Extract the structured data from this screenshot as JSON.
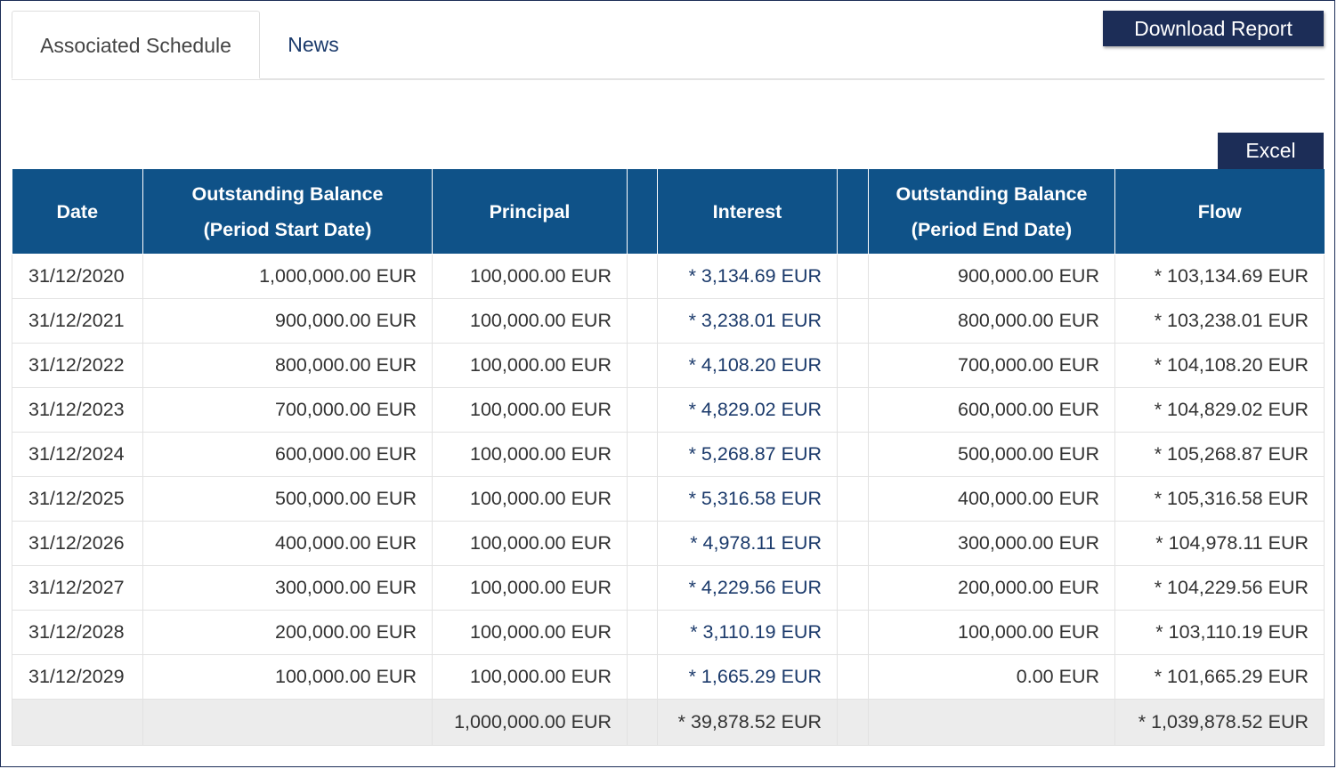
{
  "tabs": [
    {
      "label": "Associated Schedule",
      "active": true
    },
    {
      "label": "News",
      "active": false
    }
  ],
  "buttons": {
    "download_report": "Download Report",
    "excel": "Excel"
  },
  "table": {
    "headers": {
      "date": "Date",
      "outstanding_start_line1": "Outstanding Balance",
      "outstanding_start_line2": "(Period Start Date)",
      "principal": "Principal",
      "interest": "Interest",
      "outstanding_end_line1": "Outstanding Balance",
      "outstanding_end_line2": "(Period End Date)",
      "flow": "Flow"
    },
    "rows": [
      {
        "date": "31/12/2020",
        "start_balance": "1,000,000.00 EUR",
        "principal": "100,000.00 EUR",
        "interest": "* 3,134.69 EUR",
        "end_balance": "900,000.00 EUR",
        "flow": "* 103,134.69 EUR"
      },
      {
        "date": "31/12/2021",
        "start_balance": "900,000.00 EUR",
        "principal": "100,000.00 EUR",
        "interest": "* 3,238.01 EUR",
        "end_balance": "800,000.00 EUR",
        "flow": "* 103,238.01 EUR"
      },
      {
        "date": "31/12/2022",
        "start_balance": "800,000.00 EUR",
        "principal": "100,000.00 EUR",
        "interest": "* 4,108.20 EUR",
        "end_balance": "700,000.00 EUR",
        "flow": "* 104,108.20 EUR"
      },
      {
        "date": "31/12/2023",
        "start_balance": "700,000.00 EUR",
        "principal": "100,000.00 EUR",
        "interest": "* 4,829.02 EUR",
        "end_balance": "600,000.00 EUR",
        "flow": "* 104,829.02 EUR"
      },
      {
        "date": "31/12/2024",
        "start_balance": "600,000.00 EUR",
        "principal": "100,000.00 EUR",
        "interest": "* 5,268.87 EUR",
        "end_balance": "500,000.00 EUR",
        "flow": "* 105,268.87 EUR"
      },
      {
        "date": "31/12/2025",
        "start_balance": "500,000.00 EUR",
        "principal": "100,000.00 EUR",
        "interest": "* 5,316.58 EUR",
        "end_balance": "400,000.00 EUR",
        "flow": "* 105,316.58 EUR"
      },
      {
        "date": "31/12/2026",
        "start_balance": "400,000.00 EUR",
        "principal": "100,000.00 EUR",
        "interest": "* 4,978.11 EUR",
        "end_balance": "300,000.00 EUR",
        "flow": "* 104,978.11 EUR"
      },
      {
        "date": "31/12/2027",
        "start_balance": "300,000.00 EUR",
        "principal": "100,000.00 EUR",
        "interest": "* 4,229.56 EUR",
        "end_balance": "200,000.00 EUR",
        "flow": "* 104,229.56 EUR"
      },
      {
        "date": "31/12/2028",
        "start_balance": "200,000.00 EUR",
        "principal": "100,000.00 EUR",
        "interest": "* 3,110.19 EUR",
        "end_balance": "100,000.00 EUR",
        "flow": "* 103,110.19 EUR"
      },
      {
        "date": "31/12/2029",
        "start_balance": "100,000.00 EUR",
        "principal": "100,000.00 EUR",
        "interest": "* 1,665.29 EUR",
        "end_balance": "0.00 EUR",
        "flow": "* 101,665.29 EUR"
      }
    ],
    "totals": {
      "principal": "1,000,000.00 EUR",
      "interest": "* 39,878.52 EUR",
      "flow": "* 1,039,878.52 EUR"
    }
  },
  "colors": {
    "header_bg": "#0f5288",
    "button_bg": "#1c2d57",
    "link_text": "#1b3a6b",
    "total_row_bg": "#ececec"
  }
}
